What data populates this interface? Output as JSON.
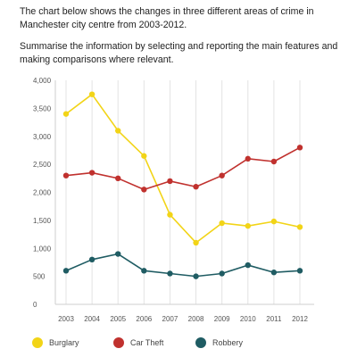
{
  "prompt": {
    "line1": "The chart below shows the changes in three different areas of crime in Manchester city centre from 2003-2012.",
    "line2": "Summarise the information by selecting and reporting the main features and making comparisons where relevant."
  },
  "chart_data": {
    "type": "line",
    "title": "",
    "xlabel": "",
    "ylabel": "",
    "x": [
      "2003",
      "2004",
      "2005",
      "2006",
      "2007",
      "2008",
      "2009",
      "2010",
      "2011",
      "2012"
    ],
    "ylim": [
      0,
      4000
    ],
    "yticks": [
      0,
      500,
      1000,
      1500,
      2000,
      2500,
      3000,
      3500,
      4000
    ],
    "ytick_labels": [
      "0",
      "500",
      "1,000",
      "1,500",
      "2,000",
      "2,500",
      "3,000",
      "3,500",
      "4,000"
    ],
    "grid": "vertical lines at each year",
    "legend_position": "bottom-left",
    "series": [
      {
        "name": "Burglary",
        "color": "#f2d417",
        "values": [
          3400,
          3750,
          3100,
          2650,
          1600,
          1100,
          1450,
          1400,
          1480,
          1380
        ]
      },
      {
        "name": "Car Theft",
        "color": "#c0312e",
        "values": [
          2300,
          2350,
          2250,
          2050,
          2200,
          2100,
          2300,
          2600,
          2550,
          2800
        ]
      },
      {
        "name": "Robbery",
        "color": "#1f5c63",
        "values": [
          600,
          800,
          900,
          600,
          550,
          500,
          550,
          700,
          570,
          600
        ]
      }
    ]
  }
}
